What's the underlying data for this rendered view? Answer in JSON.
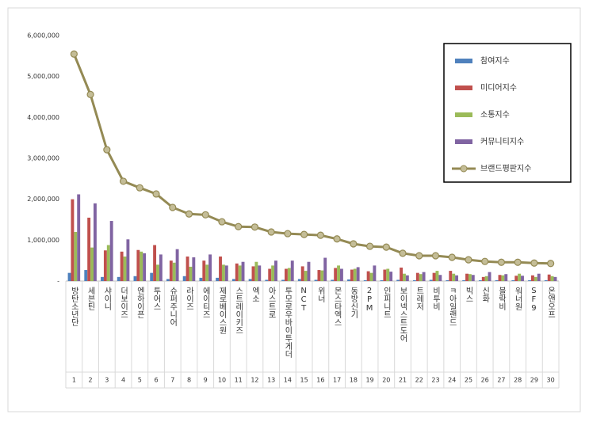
{
  "chart_data": {
    "type": "bar-line",
    "categories": [
      "방탄소년단",
      "세븐틴",
      "샤이니",
      "더보이즈",
      "엔하이픈",
      "투어스",
      "슈퍼주니어",
      "라이즈",
      "에이티즈",
      "제로베이스원",
      "스트레이키즈",
      "엑소",
      "아스트로",
      "투모로우바이투게더",
      "NCT",
      "위너",
      "몬스타엑스",
      "동방신기",
      "2PM",
      "인피니트",
      "보이넥스트도어",
      "트레저",
      "비투비",
      "ㅋ아일랜드",
      "빅스",
      "신화",
      "블락비",
      "워너원",
      "SF9",
      "온앤오프"
    ],
    "ranks": [
      1,
      2,
      3,
      4,
      5,
      6,
      7,
      8,
      9,
      10,
      11,
      12,
      13,
      14,
      15,
      16,
      17,
      18,
      19,
      20,
      21,
      22,
      23,
      24,
      25,
      26,
      27,
      28,
      29,
      30
    ],
    "series": [
      {
        "name": "참여지수",
        "type": "bar",
        "color": "#4f81bd",
        "values": [
          200000,
          270000,
          100000,
          100000,
          120000,
          200000,
          50000,
          120000,
          80000,
          80000,
          50000,
          50000,
          30000,
          30000,
          50000,
          30000,
          30000,
          40000,
          20000,
          20000,
          30000,
          20000,
          30000,
          20000,
          20000,
          20000,
          20000,
          20000,
          20000,
          20000
        ]
      },
      {
        "name": "미디어지수",
        "type": "bar",
        "color": "#c0504d",
        "values": [
          2000000,
          1550000,
          750000,
          720000,
          760000,
          880000,
          500000,
          600000,
          500000,
          600000,
          430000,
          360000,
          300000,
          300000,
          360000,
          270000,
          320000,
          280000,
          240000,
          280000,
          330000,
          200000,
          200000,
          250000,
          180000,
          100000,
          150000,
          130000,
          140000,
          160000
        ]
      },
      {
        "name": "소통지수",
        "type": "bar",
        "color": "#9bbb59",
        "values": [
          1200000,
          820000,
          880000,
          600000,
          720000,
          400000,
          450000,
          350000,
          400000,
          400000,
          380000,
          470000,
          380000,
          320000,
          250000,
          260000,
          380000,
          300000,
          200000,
          300000,
          180000,
          170000,
          250000,
          180000,
          170000,
          120000,
          140000,
          180000,
          100000,
          120000
        ]
      },
      {
        "name": "커뮤니티지수",
        "type": "bar",
        "color": "#8064a2",
        "values": [
          2120000,
          1900000,
          1470000,
          1020000,
          680000,
          650000,
          780000,
          580000,
          650000,
          380000,
          470000,
          380000,
          500000,
          500000,
          470000,
          570000,
          300000,
          340000,
          380000,
          230000,
          140000,
          220000,
          150000,
          140000,
          150000,
          220000,
          170000,
          130000,
          180000,
          100000
        ]
      },
      {
        "name": "브랜드평판지수",
        "type": "line",
        "color": "#948a54",
        "values": [
          5550000,
          4560000,
          3210000,
          2440000,
          2280000,
          2130000,
          1800000,
          1640000,
          1620000,
          1450000,
          1330000,
          1320000,
          1200000,
          1160000,
          1140000,
          1120000,
          1030000,
          910000,
          850000,
          830000,
          680000,
          620000,
          620000,
          580000,
          520000,
          480000,
          460000,
          460000,
          440000,
          430000
        ]
      }
    ],
    "ylim": [
      0,
      6000000
    ],
    "yticks": [
      {
        "value": 0,
        "label": "-"
      },
      {
        "value": 1000000,
        "label": "1,000,000"
      },
      {
        "value": 2000000,
        "label": "2,000,000"
      },
      {
        "value": 3000000,
        "label": "3,000,000"
      },
      {
        "value": 4000000,
        "label": "4,000,000"
      },
      {
        "value": 5000000,
        "label": "5,000,000"
      },
      {
        "value": 6000000,
        "label": "6,000,000"
      }
    ],
    "legend": "right"
  }
}
